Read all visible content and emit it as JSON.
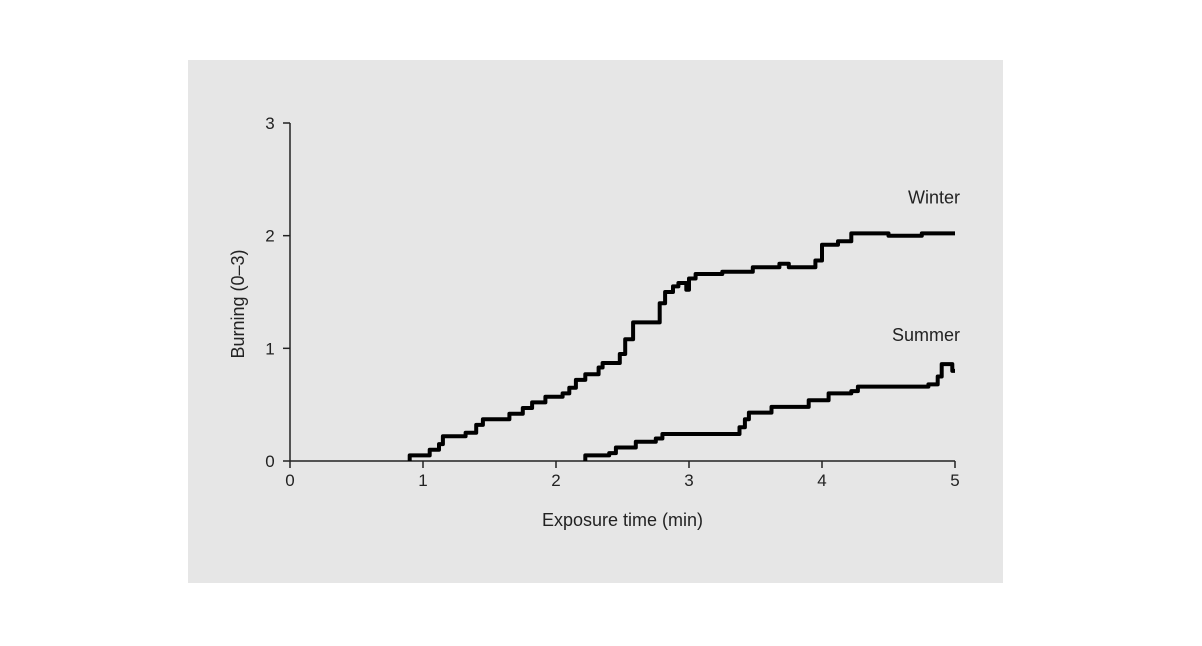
{
  "chart_data": {
    "type": "line",
    "title": "",
    "xlabel": "Exposure time (min)",
    "ylabel": "Burning (0–3)",
    "xlim": [
      0,
      5
    ],
    "ylim": [
      0,
      3
    ],
    "x_ticks": [
      "0",
      "1",
      "2",
      "3",
      "4",
      "5"
    ],
    "y_ticks": [
      "0",
      "1",
      "2",
      "3"
    ],
    "grid": false,
    "line_color": "#000000",
    "series": [
      {
        "name": "Winter",
        "step": true,
        "points": [
          [
            0.9,
            0.0
          ],
          [
            0.9,
            0.05
          ],
          [
            1.05,
            0.1
          ],
          [
            1.12,
            0.15
          ],
          [
            1.15,
            0.22
          ],
          [
            1.32,
            0.25
          ],
          [
            1.4,
            0.32
          ],
          [
            1.45,
            0.37
          ],
          [
            1.6,
            0.37
          ],
          [
            1.65,
            0.42
          ],
          [
            1.75,
            0.47
          ],
          [
            1.82,
            0.52
          ],
          [
            1.92,
            0.57
          ],
          [
            2.05,
            0.6
          ],
          [
            2.1,
            0.65
          ],
          [
            2.15,
            0.72
          ],
          [
            2.22,
            0.77
          ],
          [
            2.32,
            0.83
          ],
          [
            2.35,
            0.87
          ],
          [
            2.48,
            0.95
          ],
          [
            2.52,
            1.08
          ],
          [
            2.58,
            1.23
          ],
          [
            2.7,
            1.23
          ],
          [
            2.78,
            1.4
          ],
          [
            2.82,
            1.5
          ],
          [
            2.88,
            1.55
          ],
          [
            2.92,
            1.58
          ],
          [
            2.98,
            1.52
          ],
          [
            3.0,
            1.62
          ],
          [
            3.05,
            1.66
          ],
          [
            3.18,
            1.66
          ],
          [
            3.25,
            1.68
          ],
          [
            3.48,
            1.72
          ],
          [
            3.68,
            1.75
          ],
          [
            3.75,
            1.72
          ],
          [
            3.95,
            1.78
          ],
          [
            4.0,
            1.92
          ],
          [
            4.12,
            1.95
          ],
          [
            4.22,
            2.02
          ],
          [
            4.5,
            2.0
          ],
          [
            4.75,
            2.02
          ],
          [
            5.0,
            2.02
          ]
        ]
      },
      {
        "name": "Summer",
        "step": true,
        "points": [
          [
            2.22,
            0.0
          ],
          [
            2.22,
            0.05
          ],
          [
            2.4,
            0.07
          ],
          [
            2.45,
            0.12
          ],
          [
            2.6,
            0.17
          ],
          [
            2.75,
            0.2
          ],
          [
            2.8,
            0.24
          ],
          [
            3.3,
            0.24
          ],
          [
            3.38,
            0.3
          ],
          [
            3.42,
            0.37
          ],
          [
            3.45,
            0.43
          ],
          [
            3.62,
            0.48
          ],
          [
            3.9,
            0.54
          ],
          [
            4.05,
            0.6
          ],
          [
            4.22,
            0.62
          ],
          [
            4.27,
            0.66
          ],
          [
            4.8,
            0.68
          ],
          [
            4.87,
            0.75
          ],
          [
            4.9,
            0.86
          ],
          [
            4.98,
            0.8
          ],
          [
            5.0,
            0.8
          ]
        ]
      }
    ]
  }
}
